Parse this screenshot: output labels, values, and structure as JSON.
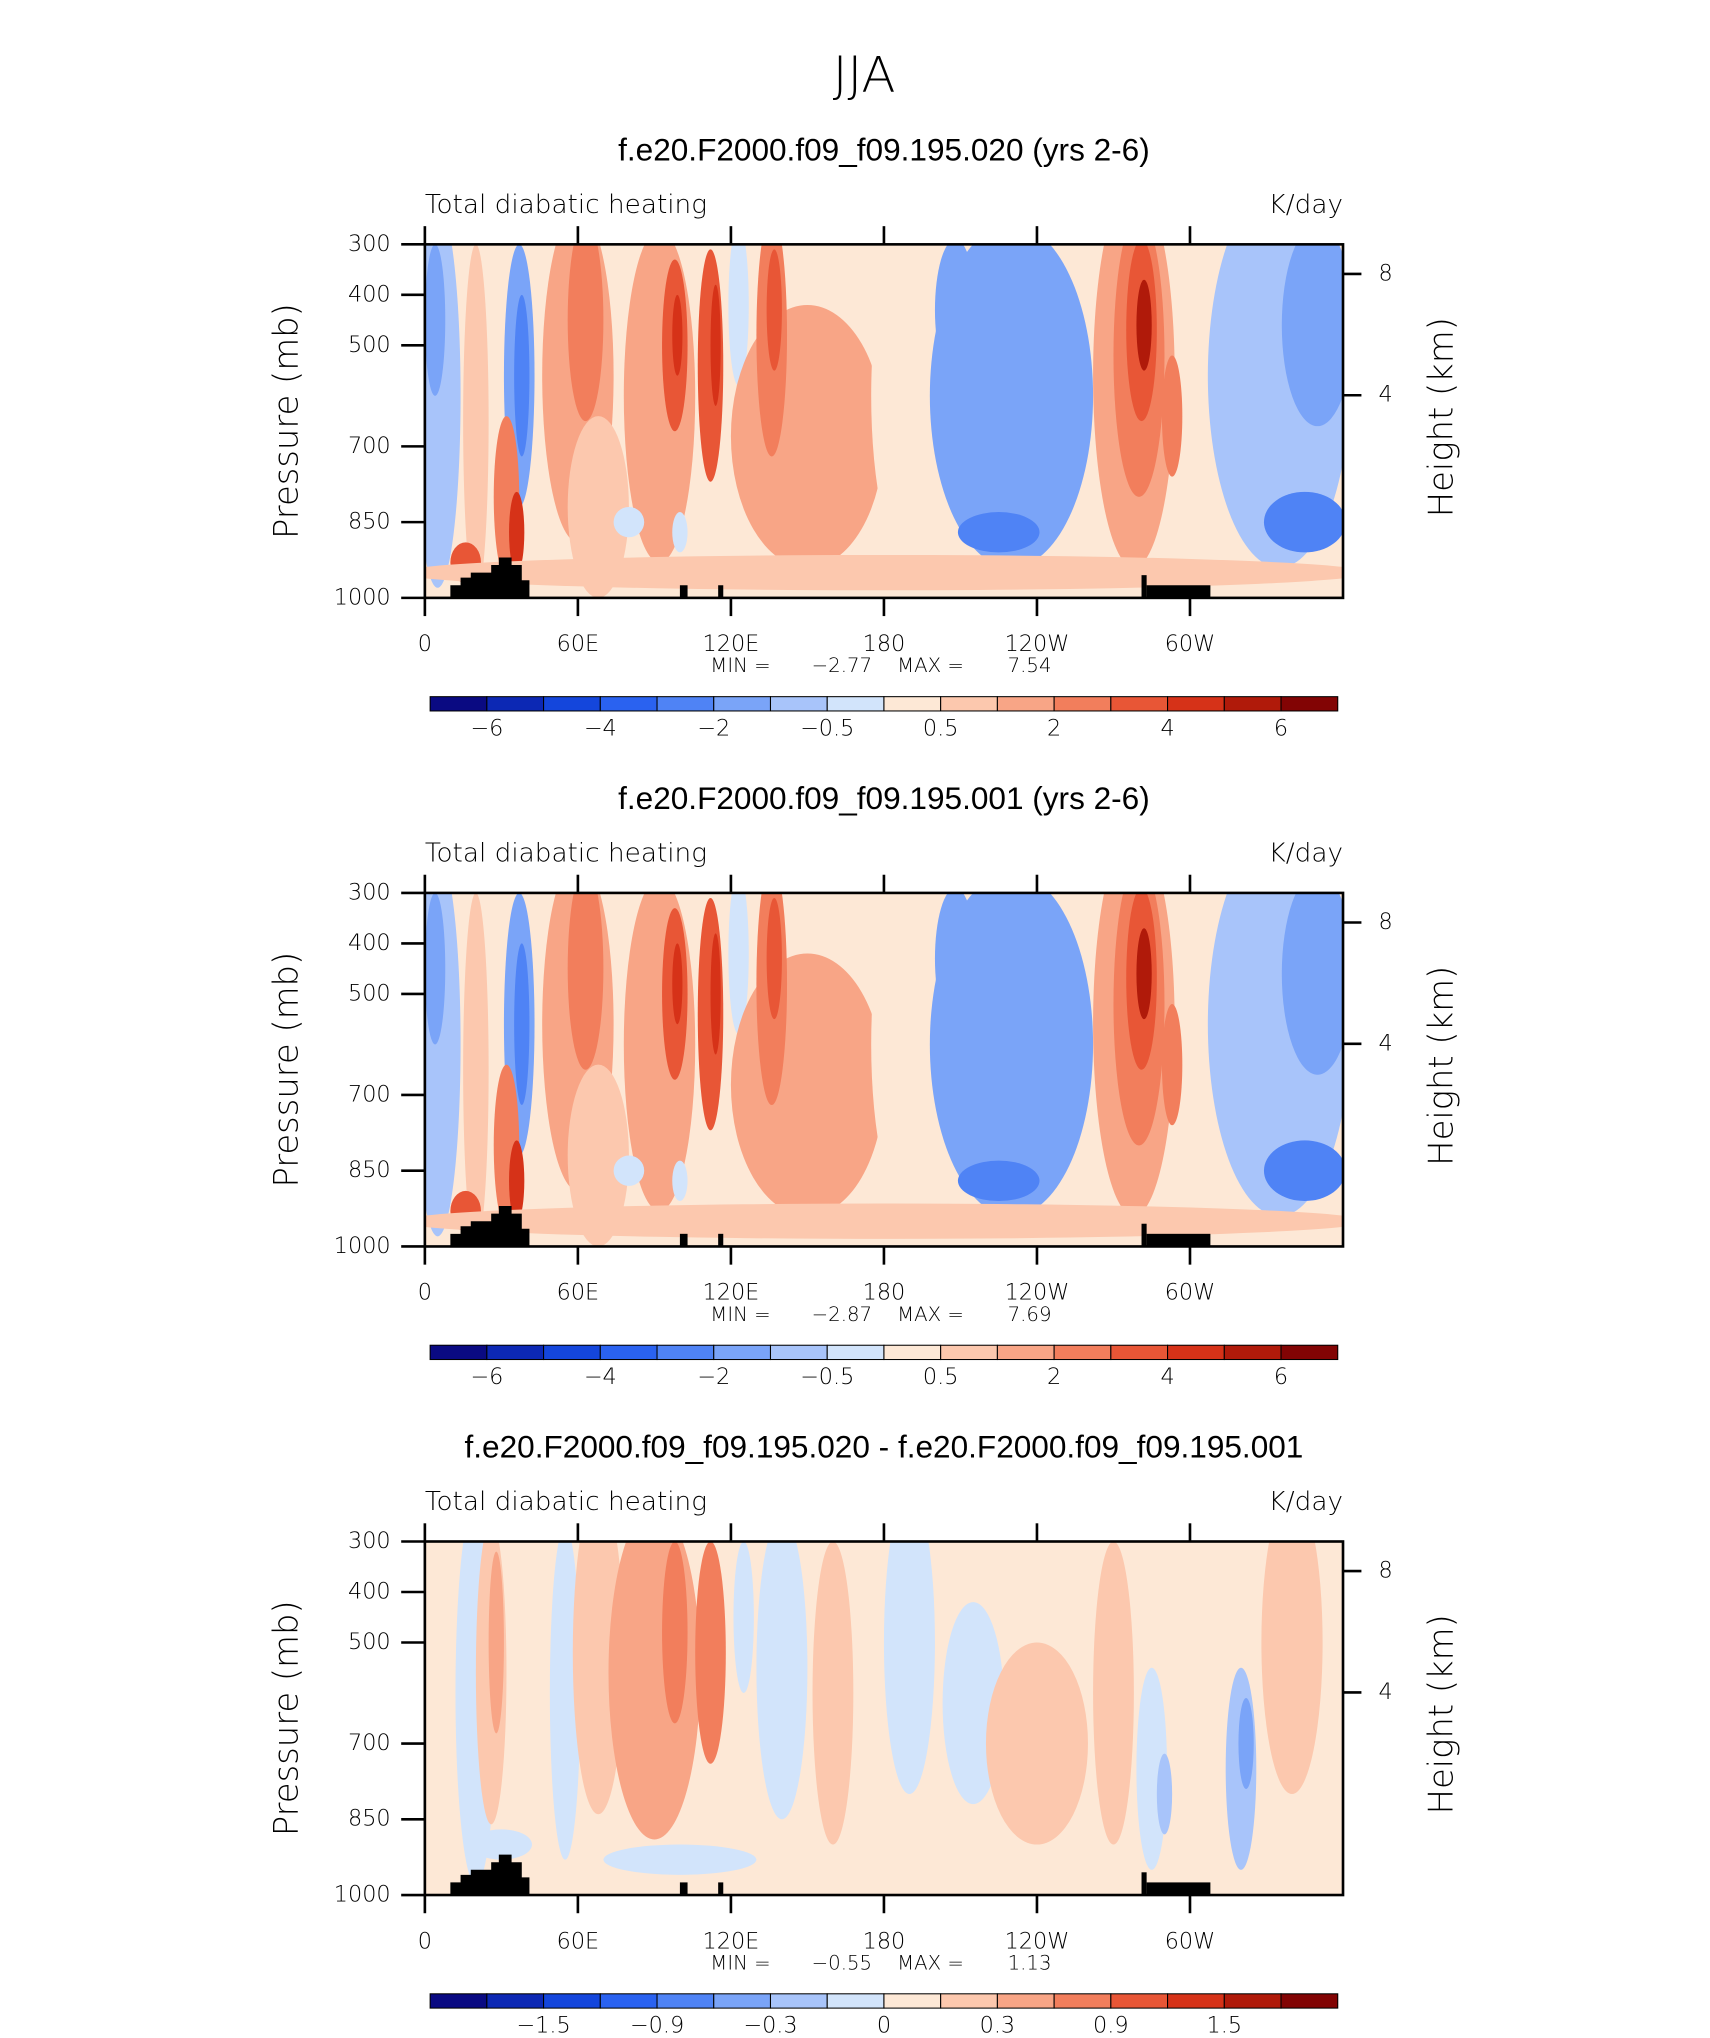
{
  "title": "JJA",
  "chart_data": [
    {
      "type": "contour",
      "title": "f.e20.F2000.f09_f09.195.020 (yrs 2-6)",
      "left_label": "Total diabatic heating",
      "right_label": "K/day",
      "y_label": "Pressure (mb)",
      "y2_label": "Height (km)",
      "xlim": [
        0,
        360
      ],
      "xticks": [
        0,
        {
          "value": 60,
          "label": "60E"
        },
        {
          "value": 120,
          "label": "120E"
        },
        180,
        {
          "value": 240,
          "label": "120W"
        },
        {
          "value": 300,
          "label": "60W"
        }
      ],
      "ylim": [
        1000,
        300
      ],
      "yticks": [
        300,
        400,
        500,
        700,
        850,
        1000
      ],
      "y2ticks": [
        4,
        8
      ],
      "min_label": "MIN =",
      "min": {
        "value": -2.77,
        "label": "−2.77"
      },
      "max_label": "MAX =",
      "max": 7.54,
      "colorbar": {
        "levels": [
          -6,
          -5,
          -4,
          -3,
          -2,
          -1,
          -0.5,
          0,
          0.5,
          1,
          2,
          3,
          4,
          5,
          6
        ],
        "colors": [
          "#0a0a82",
          "#0c28b4",
          "#1446dc",
          "#2a62f0",
          "#4f83f5",
          "#7aa4f8",
          "#a8c4fa",
          "#d2e4fb",
          "#fde8d6",
          "#fcc8ae",
          "#f8a586",
          "#f27e5c",
          "#e85636",
          "#d63218",
          "#b01a0a",
          "#820404"
        ],
        "ticks": [
          {
            "value": -6,
            "label": "−6"
          },
          {
            "value": -4,
            "label": "−4"
          },
          {
            "value": -2,
            "label": "−2"
          },
          {
            "value": -0.5,
            "label": "−0.5"
          },
          0.5,
          2,
          4,
          6
        ]
      }
    },
    {
      "type": "contour",
      "title": "f.e20.F2000.f09_f09.195.001 (yrs 2-6)",
      "left_label": "Total diabatic heating",
      "right_label": "K/day",
      "y_label": "Pressure (mb)",
      "y2_label": "Height (km)",
      "xlim": [
        0,
        360
      ],
      "xticks": [
        0,
        {
          "value": 60,
          "label": "60E"
        },
        {
          "value": 120,
          "label": "120E"
        },
        180,
        {
          "value": 240,
          "label": "120W"
        },
        {
          "value": 300,
          "label": "60W"
        }
      ],
      "ylim": [
        1000,
        300
      ],
      "yticks": [
        300,
        400,
        500,
        700,
        850,
        1000
      ],
      "y2ticks": [
        4,
        8
      ],
      "min_label": "MIN =",
      "min": {
        "value": -2.87,
        "label": "−2.87"
      },
      "max_label": "MAX =",
      "max": 7.69,
      "colorbar": {
        "levels": [
          -6,
          -5,
          -4,
          -3,
          -2,
          -1,
          -0.5,
          0,
          0.5,
          1,
          2,
          3,
          4,
          5,
          6
        ],
        "colors": [
          "#0a0a82",
          "#0c28b4",
          "#1446dc",
          "#2a62f0",
          "#4f83f5",
          "#7aa4f8",
          "#a8c4fa",
          "#d2e4fb",
          "#fde8d6",
          "#fcc8ae",
          "#f8a586",
          "#f27e5c",
          "#e85636",
          "#d63218",
          "#b01a0a",
          "#820404"
        ],
        "ticks": [
          {
            "value": -6,
            "label": "−6"
          },
          {
            "value": -4,
            "label": "−4"
          },
          {
            "value": -2,
            "label": "−2"
          },
          {
            "value": -0.5,
            "label": "−0.5"
          },
          0.5,
          2,
          4,
          6
        ]
      }
    },
    {
      "type": "contour",
      "title": "f.e20.F2000.f09_f09.195.020 - f.e20.F2000.f09_f09.195.001",
      "left_label": "Total diabatic heating",
      "right_label": "K/day",
      "y_label": "Pressure (mb)",
      "y2_label": "Height (km)",
      "xlim": [
        0,
        360
      ],
      "xticks": [
        0,
        {
          "value": 60,
          "label": "60E"
        },
        {
          "value": 120,
          "label": "120E"
        },
        180,
        {
          "value": 240,
          "label": "120W"
        },
        {
          "value": 300,
          "label": "60W"
        }
      ],
      "ylim": [
        1000,
        300
      ],
      "yticks": [
        300,
        400,
        500,
        700,
        850,
        1000
      ],
      "y2ticks": [
        4,
        8
      ],
      "min_label": "MIN =",
      "min": {
        "value": -0.55,
        "label": "−0.55"
      },
      "max_label": "MAX =",
      "max": 1.13,
      "colorbar": {
        "levels": [
          -1.8,
          -1.5,
          -1.2,
          -0.9,
          -0.6,
          -0.3,
          -0.1,
          0,
          0.1,
          0.3,
          0.6,
          0.9,
          1.2,
          1.5,
          1.8
        ],
        "colors": [
          "#0a0a82",
          "#0c28b4",
          "#1446dc",
          "#2a62f0",
          "#4f83f5",
          "#7aa4f8",
          "#a8c4fa",
          "#d2e4fb",
          "#fde8d6",
          "#fcc8ae",
          "#f8a586",
          "#f27e5c",
          "#e85636",
          "#d63218",
          "#b01a0a",
          "#820404"
        ],
        "ticks": [
          {
            "value": -1.5,
            "label": "−1.5"
          },
          {
            "value": -0.9,
            "label": "−0.9"
          },
          {
            "value": -0.3,
            "label": "−0.3"
          },
          0,
          0.3,
          0.9,
          1.5
        ]
      }
    }
  ]
}
